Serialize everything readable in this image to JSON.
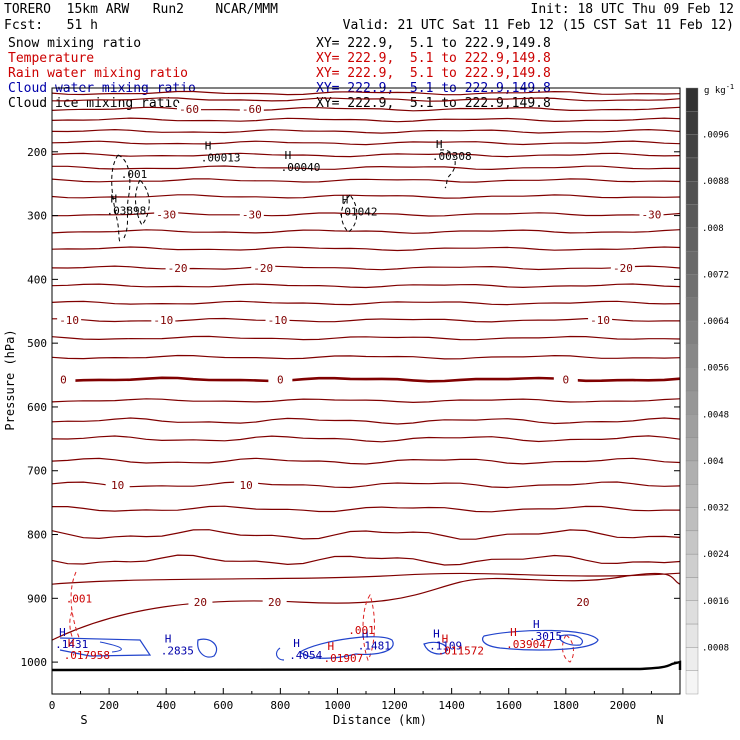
{
  "header": {
    "model": "TORERO  15km ARW   Run2    NCAR/MMM",
    "init": "Init: 18 UTC Thu 09 Feb 12",
    "fcst": "Fcst:   51 h",
    "valid": "Valid: 21 UTC Sat 11 Feb 12 (15 CST Sat 11 Feb 12)",
    "fields": [
      {
        "name": "Snow mixing ratio",
        "xy": "XY= 222.9,  5.1 to 222.9,149.8",
        "color": "#000000"
      },
      {
        "name": "Temperature",
        "xy": "XY= 222.9,  5.1 to 222.9,149.8",
        "color": "#cc0000"
      },
      {
        "name": "Rain water mixing ratio",
        "xy": "XY= 222.9,  5.1 to 222.9,149.8",
        "color": "#cc0000"
      },
      {
        "name": "Cloud water mixing ratio",
        "xy": "XY= 222.9,  5.1 to 222.9,149.8",
        "color": "#0000aa"
      },
      {
        "name": "Cloud ice mixing ratio",
        "xy": "XY= 222.9,  5.1 to 222.9,149.8",
        "color": "#000000"
      }
    ]
  },
  "chart_data": {
    "type": "contour",
    "xlabel": "Distance (km)",
    "ylabel": "Pressure (hPa)",
    "xlim": [
      0,
      2200
    ],
    "ylim": [
      1050,
      100
    ],
    "x_ticks": [
      0,
      200,
      400,
      600,
      800,
      1000,
      1200,
      1400,
      1600,
      1800,
      2000
    ],
    "y_ticks": [
      200,
      300,
      400,
      500,
      600,
      700,
      800,
      900,
      1000
    ],
    "x_end_labels": {
      "left": "S",
      "right": "N"
    },
    "temperature_contours": {
      "color": "#800000",
      "levels": [
        {
          "value": -60,
          "p": 133,
          "labels": [
            {
              "text": "-60",
              "x": 480
            },
            {
              "text": "-60",
              "x": 700
            }
          ]
        },
        {
          "value": -30,
          "p": 298,
          "labels": [
            {
              "text": "-30",
              "x": 400
            },
            {
              "text": "-30",
              "x": 700
            },
            {
              "text": "-30",
              "x": 2100
            }
          ]
        },
        {
          "value": -20,
          "p": 382,
          "labels": [
            {
              "text": "-20",
              "x": 440
            },
            {
              "text": "-20",
              "x": 740
            },
            {
              "text": "-20",
              "x": 2000
            }
          ]
        },
        {
          "value": -10,
          "p": 464,
          "labels": [
            {
              "text": "-10",
              "x": 60
            },
            {
              "text": "-10",
              "x": 390
            },
            {
              "text": "-10",
              "x": 790
            },
            {
              "text": "-10",
              "x": 1920
            }
          ]
        },
        {
          "value": 0,
          "p": 557,
          "labels": [
            {
              "text": "0",
              "x": 40
            },
            {
              "text": "0",
              "x": 800
            },
            {
              "text": "0",
              "x": 1800
            }
          ]
        },
        {
          "value": 10,
          "p": 722,
          "labels": [
            {
              "text": "10",
              "x": 230
            },
            {
              "text": "10",
              "x": 680
            }
          ]
        },
        {
          "value": 20,
          "p": 906,
          "labels": [
            {
              "text": "20",
              "x": 520
            },
            {
              "text": "20",
              "x": 780
            },
            {
              "text": "20",
              "x": 1860
            }
          ]
        }
      ]
    },
    "snow_maxima": [
      {
        "label": "H",
        "value": ".03898",
        "x": 240,
        "p": 295
      },
      {
        "label": "H",
        "value": ".00013",
        "x": 570,
        "p": 212
      },
      {
        "label": "H",
        "value": ".00040",
        "x": 850,
        "p": 227
      },
      {
        "label": "H",
        "value": ".01042",
        "x": 1050,
        "p": 297
      },
      {
        "label": "H",
        "value": ".00308",
        "x": 1380,
        "p": 210
      }
    ],
    "snow_contour_labels": [
      {
        "text": ".001",
        "x": 290,
        "p": 235
      }
    ],
    "cloud_water_maxima": [
      {
        "label": "H",
        "value": ".1431",
        "x": 60,
        "p": 975
      },
      {
        "label": "H",
        "value": ".2835",
        "x": 430,
        "p": 985
      },
      {
        "label": "H",
        "value": ".4054",
        "x": 880,
        "p": 992
      },
      {
        "label": "H",
        "value": ".1481",
        "x": 1120,
        "p": 977
      },
      {
        "label": "H",
        "value": ".1109",
        "x": 1370,
        "p": 977
      },
      {
        "label": "H",
        "value": ".3015",
        "x": 1720,
        "p": 962
      }
    ],
    "rain_maxima": [
      {
        "label": "H",
        "value": ".017958",
        "x": 90,
        "p": 992
      },
      {
        "label": "H",
        "value": ".01907",
        "x": 1000,
        "p": 997
      },
      {
        "label": "H",
        "value": ".011572",
        "x": 1400,
        "p": 985
      },
      {
        "label": "H",
        "value": ".039047",
        "x": 1640,
        "p": 975
      }
    ],
    "rain_contour_labels": [
      {
        "text": ".001",
        "x": 90,
        "p": 900
      },
      {
        "text": ".001",
        "x": 1080,
        "p": 950
      }
    ],
    "colorbar": {
      "unit": "g kg",
      "unit_exp": "-1",
      "labels": [
        ".0096",
        ".0088",
        ".008",
        ".0072",
        ".0064",
        ".0056",
        ".0048",
        ".004",
        ".0032",
        ".0024",
        ".0016",
        ".0008"
      ]
    }
  }
}
